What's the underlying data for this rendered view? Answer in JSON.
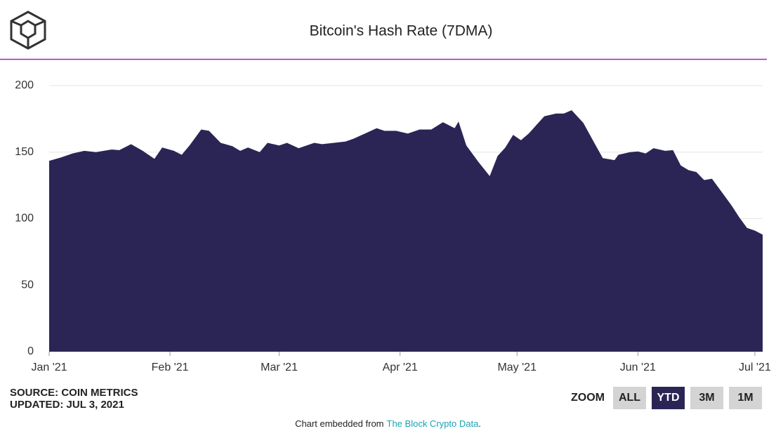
{
  "chart_data": {
    "type": "area",
    "title": "Bitcoin's Hash Rate (7DMA)",
    "color": "#2b2556",
    "grid": true,
    "x": [
      0,
      3,
      6,
      9,
      12,
      16,
      18,
      21,
      24,
      27,
      29,
      32,
      34,
      36,
      39,
      41,
      44,
      47,
      49,
      51,
      54,
      56,
      59,
      61,
      64,
      68,
      70,
      73,
      76,
      78,
      81,
      84,
      86,
      89,
      92,
      95,
      98,
      101,
      104,
      105,
      107,
      110,
      113,
      115,
      117,
      119,
      121,
      123,
      125,
      127,
      130,
      132,
      134,
      137,
      140,
      142,
      145,
      146,
      149,
      151,
      153,
      155,
      158,
      160,
      162,
      164,
      166,
      168,
      170,
      172,
      175,
      177,
      179,
      181,
      183
    ],
    "values": [
      143.5,
      146,
      149,
      151,
      150,
      152,
      151.5,
      156,
      151,
      145,
      153.5,
      151,
      148,
      155,
      167,
      166,
      157,
      154.5,
      151,
      153.5,
      150,
      157,
      155,
      157,
      153,
      157,
      156,
      157,
      158,
      160,
      164,
      168,
      166,
      166,
      164,
      167,
      167,
      172.5,
      168,
      173,
      155,
      143,
      132,
      147,
      153.5,
      163,
      159,
      164,
      170.5,
      177,
      179,
      179,
      181.5,
      172,
      156,
      145.5,
      144,
      148,
      150,
      150.5,
      149,
      153,
      151,
      151.5,
      140,
      136.5,
      135,
      129,
      130,
      122,
      110,
      101,
      93,
      91,
      88
    ],
    "xlim": [
      0,
      183
    ],
    "xticks": [
      {
        "value": 0,
        "label": "Jan '21"
      },
      {
        "value": 31,
        "label": "Feb '21"
      },
      {
        "value": 59,
        "label": "Mar '21"
      },
      {
        "value": 90,
        "label": "Apr '21"
      },
      {
        "value": 120,
        "label": "May '21"
      },
      {
        "value": 151,
        "label": "Jun '21"
      },
      {
        "value": 181,
        "label": "Jul '21"
      }
    ],
    "ylim": [
      0,
      200
    ],
    "yticks": [
      0,
      50,
      100,
      150,
      200
    ]
  },
  "source": "SOURCE: COIN METRICS",
  "updated": "UPDATED: JUL 3, 2021",
  "zoom": {
    "label": "ZOOM",
    "buttons": [
      "ALL",
      "YTD",
      "3M",
      "1M"
    ],
    "active": "YTD"
  },
  "footer": {
    "prefix": "Chart embedded from",
    "link": "The Block Crypto Data",
    "suffix": "."
  }
}
